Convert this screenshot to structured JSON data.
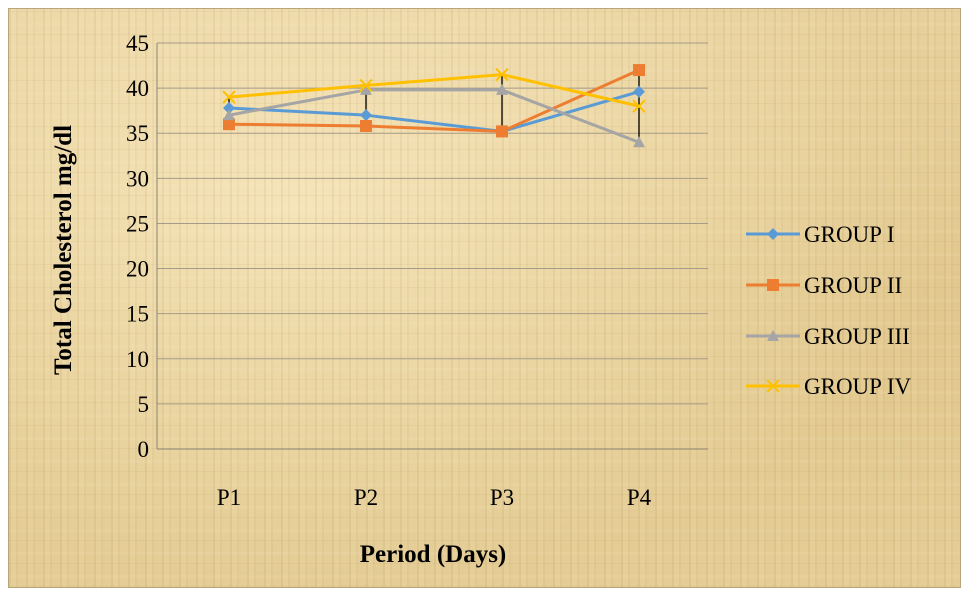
{
  "chart_data": {
    "type": "line",
    "title": "",
    "xlabel": "Period (Days)",
    "ylabel": "Total Cholesterol mg/dl",
    "categories": [
      "P1",
      "P2",
      "P3",
      "P4"
    ],
    "ylim": [
      0,
      45
    ],
    "yticks": [
      0,
      5,
      10,
      15,
      20,
      25,
      30,
      35,
      40,
      45
    ],
    "grid": "horizontal",
    "legend_position": "right",
    "series": [
      {
        "name": "GROUP I",
        "values": [
          37.8,
          37.0,
          35.2,
          39.6
        ],
        "color": "#5b9bd5",
        "marker": "diamond"
      },
      {
        "name": "GROUP II",
        "values": [
          36.0,
          35.8,
          35.2,
          42.0
        ],
        "color": "#ed7d31",
        "marker": "square"
      },
      {
        "name": "GROUP III",
        "values": [
          37.0,
          39.8,
          39.8,
          34.0
        ],
        "color": "#a5a5a5",
        "marker": "triangle"
      },
      {
        "name": "GROUP IV",
        "values": [
          39.0,
          40.3,
          41.5,
          38.0
        ],
        "color": "#ffc000",
        "marker": "x"
      }
    ],
    "error_bars": [
      {
        "category": "P1",
        "low": 36.0,
        "high": 39.0
      },
      {
        "category": "P2",
        "low": 35.8,
        "high": 40.3
      },
      {
        "category": "P3",
        "low": 35.2,
        "high": 41.5
      },
      {
        "category": "P4",
        "low": 34.0,
        "high": 42.0
      }
    ]
  }
}
